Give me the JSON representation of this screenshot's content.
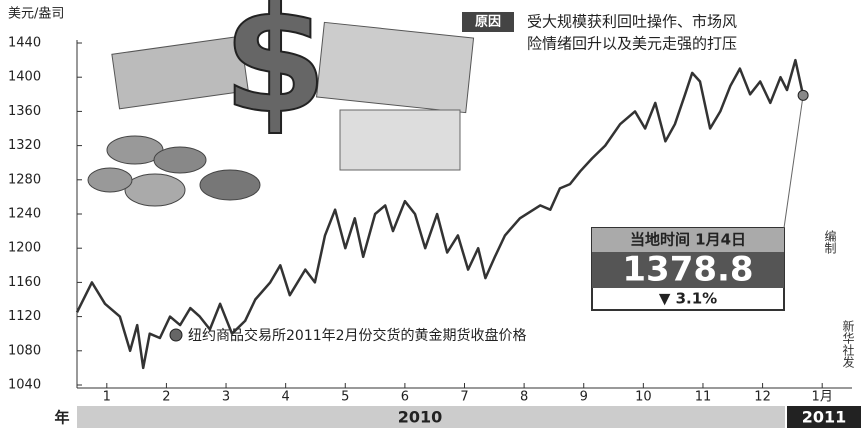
{
  "chart_data": {
    "type": "line",
    "y_label": "美元/盎司",
    "reason_tag": "原因",
    "reason_lines": [
      "受大规模获利回吐操作、市场风",
      "险情绪回升以及美元走强的打压"
    ],
    "callout": {
      "title": "当地时间 1月4日",
      "value": "1378.8",
      "change": "▼ 3.1%"
    },
    "credits": [
      "编制",
      "新华社发"
    ],
    "year_label": "年",
    "years": [
      "2010",
      "2011"
    ],
    "xlim": [
      0,
      13
    ],
    "ylim": [
      1040,
      1440
    ],
    "yticks": [
      1040,
      1080,
      1120,
      1160,
      1200,
      1240,
      1280,
      1320,
      1360,
      1400,
      1440
    ],
    "xticks": [
      {
        "value": 0.5,
        "label": "1"
      },
      {
        "value": 1.5,
        "label": "2"
      },
      {
        "value": 2.5,
        "label": "3"
      },
      {
        "value": 3.5,
        "label": "4"
      },
      {
        "value": 4.5,
        "label": "5"
      },
      {
        "value": 5.5,
        "label": "6"
      },
      {
        "value": 6.5,
        "label": "7"
      },
      {
        "value": 7.5,
        "label": "8"
      },
      {
        "value": 8.5,
        "label": "9"
      },
      {
        "value": 9.5,
        "label": "10"
      },
      {
        "value": 10.5,
        "label": "11"
      },
      {
        "value": 11.5,
        "label": "12"
      },
      {
        "value": 12.5,
        "label": "1月"
      }
    ],
    "x": [
      0,
      0.25,
      0.47,
      0.72,
      0.89,
      1.01,
      1.11,
      1.22,
      1.39,
      1.56,
      1.73,
      1.9,
      2.06,
      2.23,
      2.4,
      2.6,
      2.82,
      2.99,
      3.24,
      3.41,
      3.57,
      3.83,
      3.99,
      4.16,
      4.33,
      4.5,
      4.66,
      4.8,
      5,
      5.17,
      5.3,
      5.5,
      5.67,
      5.84,
      6.04,
      6.21,
      6.39,
      6.56,
      6.73,
      6.85,
      7.01,
      7.18,
      7.43,
      7.77,
      7.94,
      8.1,
      8.27,
      8.44,
      8.64,
      8.86,
      9.11,
      9.36,
      9.53,
      9.7,
      9.87,
      10.03,
      10.2,
      10.32,
      10.45,
      10.62,
      10.79,
      10.96,
      11.12,
      11.29,
      11.46,
      11.63,
      11.8,
      11.91,
      12.05,
      12.18
    ],
    "series": [
      {
        "name": "纽约商品交易所2011年2月份交货的黄金期货收盘价格",
        "color": "#333333",
        "values": [
          1125,
          1160,
          1135,
          1120,
          1080,
          1110,
          1060,
          1100,
          1095,
          1120,
          1110,
          1130,
          1120,
          1105,
          1135,
          1100,
          1115,
          1140,
          1160,
          1180,
          1145,
          1175,
          1160,
          1215,
          1245,
          1200,
          1235,
          1190,
          1240,
          1250,
          1220,
          1255,
          1240,
          1200,
          1240,
          1195,
          1215,
          1175,
          1200,
          1165,
          1190,
          1215,
          1235,
          1250,
          1245,
          1270,
          1275,
          1290,
          1305,
          1320,
          1345,
          1360,
          1340,
          1370,
          1325,
          1345,
          1380,
          1405,
          1395,
          1340,
          1360,
          1390,
          1410,
          1380,
          1395,
          1370,
          1400,
          1385,
          1420,
          1378.8
        ]
      }
    ]
  }
}
